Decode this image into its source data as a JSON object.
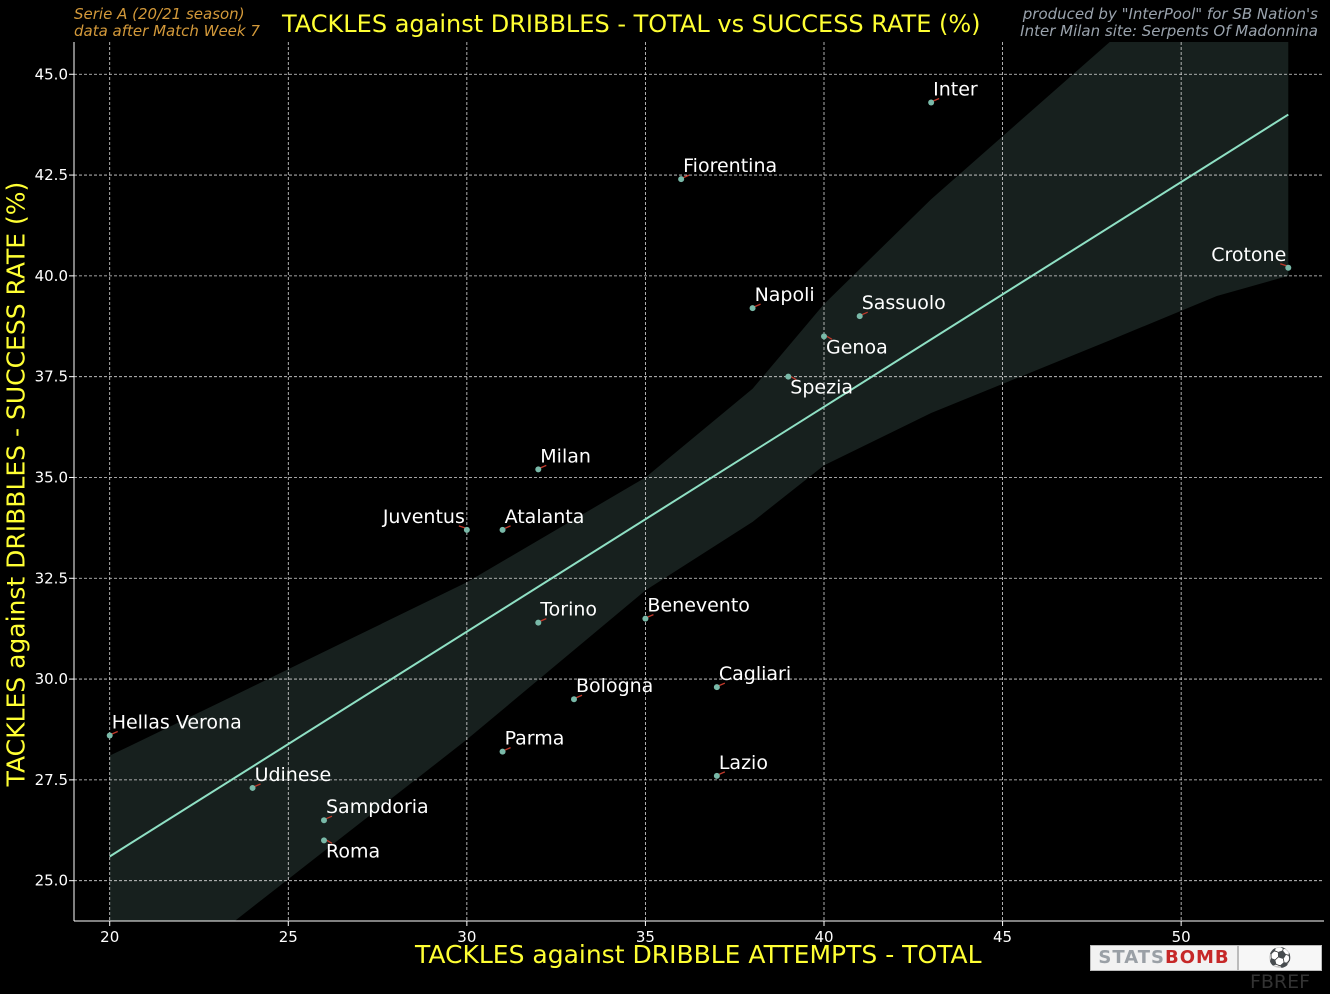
{
  "header": {
    "left_line1": "Serie A  (20/21 season)",
    "left_line2": "data after Match Week 7",
    "right_line1": "produced by \"InterPool\" for SB Nation's",
    "right_line2": "Inter Milan site: Serpents Of Madonnina"
  },
  "logos": {
    "statsbomb_white": "STATS",
    "statsbomb_red": "BOMB",
    "fbref_icon": "fb-ball-icon",
    "fbref_text": "FBREF"
  },
  "colors": {
    "background": "#000000",
    "title": "#ffff33",
    "left_note": "#d3993a",
    "right_note": "#9aa3ad",
    "point": "#79b9a8",
    "marker_tick": "#c0392b",
    "regression": "#8fe0c4",
    "band": "#17201e",
    "grid": "#d9d9d9",
    "label": "#ffffff"
  },
  "chart_data": {
    "type": "scatter",
    "title": "TACKLES against DRIBBLES - TOTAL vs SUCCESS RATE (%)",
    "xlabel": "TACKLES against DRIBBLE ATTEMPTS - TOTAL",
    "ylabel": "TACKLES against DRIBBLES - SUCCESS RATE (%)",
    "xlim": [
      19,
      54
    ],
    "ylim": [
      24,
      45.8
    ],
    "xticks": [
      20,
      25,
      30,
      35,
      40,
      45,
      50
    ],
    "yticks": [
      25.0,
      27.5,
      30.0,
      32.5,
      35.0,
      37.5,
      40.0,
      42.5,
      45.0
    ],
    "xtick_labels": [
      "20",
      "25",
      "30",
      "35",
      "40",
      "45",
      "50"
    ],
    "ytick_labels": [
      "25.0",
      "27.5",
      "30.0",
      "32.5",
      "35.0",
      "37.5",
      "40.0",
      "42.5",
      "45.0"
    ],
    "grid": true,
    "points": [
      {
        "label": "Inter",
        "x": 43,
        "y": 44.3,
        "pos": "ur"
      },
      {
        "label": "Fiorentina",
        "x": 36,
        "y": 42.4,
        "pos": "ur"
      },
      {
        "label": "Crotone",
        "x": 53,
        "y": 40.2,
        "pos": "ul"
      },
      {
        "label": "Napoli",
        "x": 38,
        "y": 39.2,
        "pos": "ur"
      },
      {
        "label": "Sassuolo",
        "x": 41,
        "y": 39.0,
        "pos": "ur"
      },
      {
        "label": "Genoa",
        "x": 40,
        "y": 38.5,
        "pos": "lr"
      },
      {
        "label": "Spezia",
        "x": 39,
        "y": 37.5,
        "pos": "lr"
      },
      {
        "label": "Milan",
        "x": 32,
        "y": 35.2,
        "pos": "ur"
      },
      {
        "label": "Juventus",
        "x": 30,
        "y": 33.7,
        "pos": "ul"
      },
      {
        "label": "Atalanta",
        "x": 31,
        "y": 33.7,
        "pos": "ur"
      },
      {
        "label": "Torino",
        "x": 32,
        "y": 31.4,
        "pos": "ur"
      },
      {
        "label": "Benevento",
        "x": 35,
        "y": 31.5,
        "pos": "ur"
      },
      {
        "label": "Cagliari",
        "x": 37,
        "y": 29.8,
        "pos": "ur"
      },
      {
        "label": "Bologna",
        "x": 33,
        "y": 29.5,
        "pos": "ur"
      },
      {
        "label": "Hellas Verona",
        "x": 20,
        "y": 28.6,
        "pos": "ur"
      },
      {
        "label": "Parma",
        "x": 31,
        "y": 28.2,
        "pos": "ur"
      },
      {
        "label": "Lazio",
        "x": 37,
        "y": 27.6,
        "pos": "ur"
      },
      {
        "label": "Udinese",
        "x": 24,
        "y": 27.3,
        "pos": "ur"
      },
      {
        "label": "Sampdoria",
        "x": 26,
        "y": 26.5,
        "pos": "ur"
      },
      {
        "label": "Roma",
        "x": 26,
        "y": 26.0,
        "pos": "lr"
      }
    ],
    "regression": {
      "x": [
        20,
        53
      ],
      "y": [
        25.6,
        44.0
      ]
    },
    "confidence_band": {
      "x": [
        20,
        23.5,
        30,
        35,
        38,
        40,
        43,
        48,
        51,
        53
      ],
      "upper": [
        28.1,
        29.6,
        32.4,
        35.0,
        37.2,
        39.3,
        41.9,
        45.8,
        45.8,
        45.8
      ],
      "lower": [
        23.0,
        24.0,
        28.5,
        32.2,
        33.9,
        35.3,
        36.6,
        38.4,
        39.5,
        40.0
      ]
    }
  }
}
